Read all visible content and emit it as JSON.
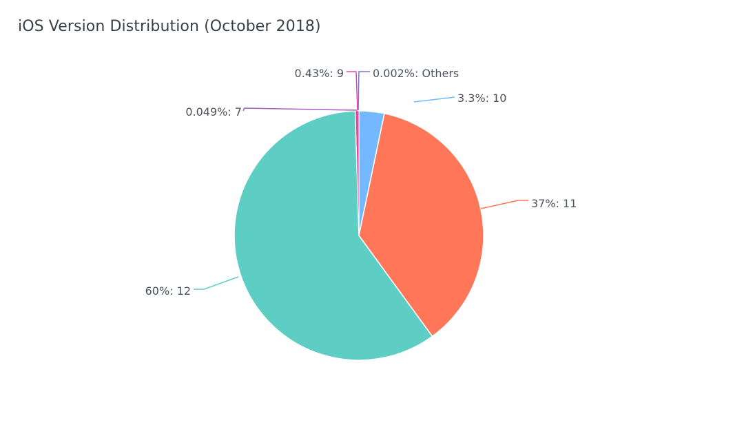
{
  "chart_data": {
    "type": "pie",
    "title": "iOS Version Distribution (October 2018)",
    "legend": "none",
    "slices": [
      {
        "category": "10",
        "percent": 3.3,
        "label": "3.3%: 10",
        "color": "#74b9ff"
      },
      {
        "category": "11",
        "percent": 37,
        "label": "37%: 11",
        "color": "#ff7659"
      },
      {
        "category": "12",
        "percent": 60,
        "label": "60%: 12",
        "color": "#5ecdc3"
      },
      {
        "category": "7",
        "percent": 0.049,
        "label": "0.049%: 7",
        "color": "#a55dbf"
      },
      {
        "category": "9",
        "percent": 0.43,
        "label": "0.43%: 9",
        "color": "#e8479d"
      },
      {
        "category": "Others",
        "percent": 0.002,
        "label": "0.002%: Others",
        "color": "#7d6fd6"
      }
    ]
  }
}
